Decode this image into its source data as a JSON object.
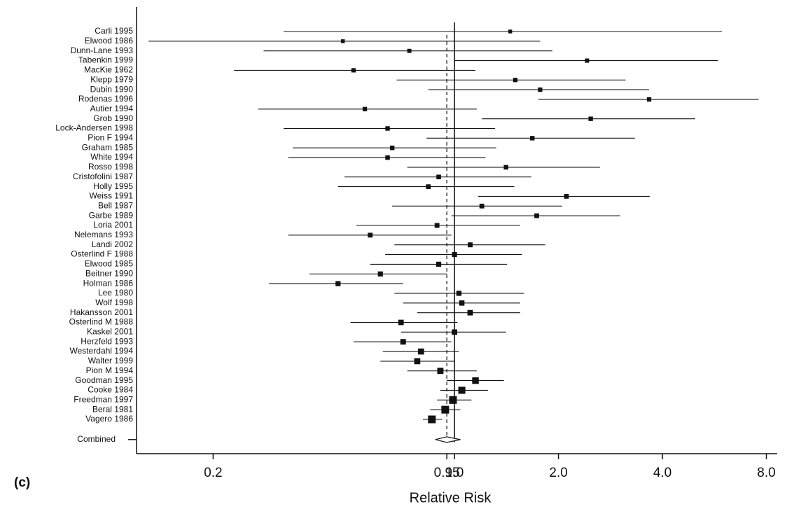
{
  "chart_data": {
    "type": "forest",
    "panel_label": "(c)",
    "xlabel": "Relative Risk",
    "log_x": true,
    "xlim": [
      0.12,
      8.6
    ],
    "xticks": [
      0.2,
      0.95,
      {
        "value": 1,
        "label": "1.0"
      },
      {
        "value": 2,
        "label": "2.0"
      },
      {
        "value": 4,
        "label": "4.0"
      },
      {
        "value": 8,
        "label": "8.0"
      }
    ],
    "reference_line": 1,
    "color": "#111111",
    "categories": [
      "Carli 1995",
      "Elwood 1986",
      "Dunn-Lane 1993",
      "Tabenkin 1999",
      "MacKie 1962",
      "Klepp 1979",
      "Dubin 1990",
      "Rodenas 1996",
      "Autier 1994",
      "Grob 1990",
      "Lock-Andersen 1998",
      "Pion F 1994",
      "Graham 1985",
      "White 1994",
      "Rosso 1998",
      "Cristofolini 1987",
      "Holly 1995",
      "Weiss 1991",
      "Bell 1987",
      "Garbe 1989",
      "Loria 2001",
      "Nelemans 1993",
      "Landi 2002",
      "Osterlind F 1988",
      "Elwood 1985",
      "Beitner 1990",
      "Holman 1986",
      "Lee 1980",
      "Wolf 1998",
      "Hakansson 2001",
      "Osterlind M 1988",
      "Kaskel 2001",
      "Herzfeld 1993",
      "Westerdahl 1994",
      "Walter 1999",
      "Pion M 1994",
      "Goodman 1995",
      "Cooke 1984",
      "Freedman 1997",
      "Beral 1981",
      "Vagero 1986"
    ],
    "values": [
      1.45,
      0.475,
      0.74,
      2.42,
      0.51,
      1.5,
      1.77,
      3.66,
      0.55,
      2.48,
      0.64,
      1.68,
      0.66,
      0.64,
      1.41,
      0.9,
      0.84,
      2.11,
      1.2,
      1.73,
      0.89,
      0.57,
      1.11,
      1.0,
      0.9,
      0.61,
      0.46,
      1.03,
      1.05,
      1.11,
      0.7,
      1.0,
      0.71,
      0.8,
      0.78,
      0.91,
      1.15,
      1.05,
      0.99,
      0.94,
      0.86
    ],
    "lower": [
      0.32,
      0.13,
      0.28,
      1.0,
      0.23,
      0.68,
      0.84,
      1.75,
      0.27,
      1.2,
      0.32,
      0.83,
      0.34,
      0.33,
      0.73,
      0.48,
      0.46,
      1.17,
      0.66,
      0.98,
      0.52,
      0.33,
      0.67,
      0.63,
      0.57,
      0.38,
      0.29,
      0.67,
      0.71,
      0.78,
      0.5,
      0.7,
      0.51,
      0.62,
      0.61,
      0.73,
      0.95,
      0.91,
      0.89,
      0.85,
      0.81
    ],
    "upper": [
      5.95,
      1.77,
      1.92,
      5.79,
      1.15,
      3.13,
      3.66,
      7.6,
      1.16,
      4.98,
      1.31,
      3.33,
      1.32,
      1.23,
      2.64,
      1.67,
      1.49,
      3.68,
      2.05,
      3.02,
      1.55,
      0.98,
      1.83,
      1.57,
      1.42,
      0.95,
      0.71,
      1.59,
      1.55,
      1.55,
      1.02,
      1.41,
      0.98,
      1.03,
      1.0,
      1.16,
      1.39,
      1.25,
      1.12,
      1.04,
      0.92
    ],
    "summary": {
      "name": "Combined",
      "value": 0.95,
      "lower": 0.88,
      "upper": 1.04
    }
  }
}
